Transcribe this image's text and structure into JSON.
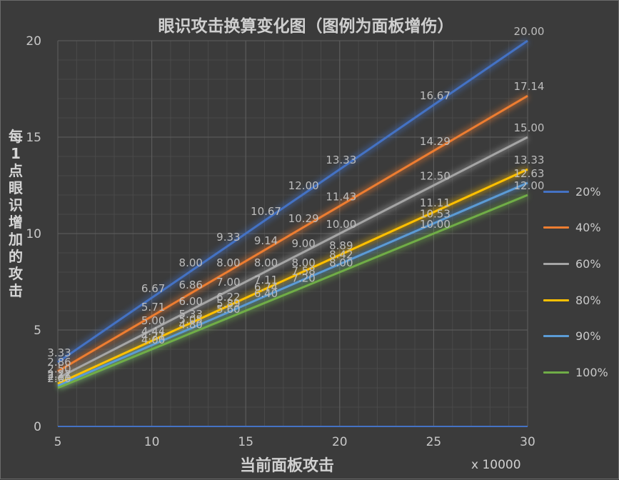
{
  "chart_data": {
    "type": "line",
    "title": "眼识攻击换算变化图（图例为面板增伤）",
    "xlabel": "当前面板攻击",
    "ylabel": "每1点眼识增加的攻击",
    "x_unit_label": "x 10000",
    "xlim": [
      5,
      30
    ],
    "ylim": [
      0,
      20
    ],
    "x_ticks": [
      "5",
      "10",
      "15",
      "20",
      "25",
      "30"
    ],
    "y_ticks": [
      "0",
      "5",
      "10",
      "15",
      "20"
    ],
    "grid": true,
    "legend_position": "right",
    "series": [
      {
        "name": "20%",
        "color": "#4472c4",
        "points": [
          [
            5,
            3.33
          ],
          [
            10,
            6.67
          ],
          [
            12,
            8.0
          ],
          [
            14,
            9.33
          ],
          [
            16,
            10.67
          ],
          [
            18,
            12.0
          ],
          [
            20,
            13.33
          ],
          [
            25,
            16.67
          ],
          [
            30,
            20.0
          ]
        ],
        "labels": [
          [
            5,
            3.33,
            "3.33"
          ],
          [
            10,
            6.67,
            "6.67"
          ],
          [
            12,
            8.0,
            "8.00"
          ],
          [
            14,
            9.33,
            "9.33"
          ],
          [
            16,
            10.67,
            "10.67"
          ],
          [
            18,
            12.0,
            "12.00"
          ],
          [
            20,
            13.33,
            "13.33"
          ],
          [
            25,
            16.67,
            "16.67"
          ],
          [
            30,
            20.0,
            "20.00"
          ]
        ]
      },
      {
        "name": "40%",
        "color": "#ed7d31",
        "points": [
          [
            5,
            2.86
          ],
          [
            10,
            5.71
          ],
          [
            12,
            6.86
          ],
          [
            14,
            8.0
          ],
          [
            16,
            9.14
          ],
          [
            18,
            10.29
          ],
          [
            20,
            11.43
          ],
          [
            25,
            14.29
          ],
          [
            30,
            17.14
          ]
        ],
        "labels": [
          [
            5,
            2.86,
            "2.86"
          ],
          [
            10,
            5.71,
            "5.71"
          ],
          [
            12,
            6.86,
            "6.86"
          ],
          [
            14,
            8.0,
            "8.00"
          ],
          [
            16,
            9.14,
            "9.14"
          ],
          [
            18,
            10.29,
            "10.29"
          ],
          [
            20,
            11.43,
            "11.43"
          ],
          [
            25,
            14.29,
            "14.29"
          ],
          [
            30,
            17.14,
            "17.14"
          ]
        ]
      },
      {
        "name": "60%",
        "color": "#a5a5a5",
        "points": [
          [
            5,
            2.5
          ],
          [
            10,
            5.0
          ],
          [
            12,
            6.0
          ],
          [
            14,
            7.0
          ],
          [
            16,
            8.0
          ],
          [
            18,
            9.0
          ],
          [
            20,
            10.0
          ],
          [
            25,
            12.5
          ],
          [
            30,
            15.0
          ]
        ],
        "labels": [
          [
            5,
            2.5,
            "2.50"
          ],
          [
            10,
            5.0,
            "5.00"
          ],
          [
            12,
            6.0,
            "6.00"
          ],
          [
            14,
            7.0,
            "7.00"
          ],
          [
            16,
            8.0,
            "8.00"
          ],
          [
            18,
            9.0,
            "9.00"
          ],
          [
            20,
            10.0,
            "10.00"
          ],
          [
            25,
            12.5,
            "12.50"
          ],
          [
            30,
            15.0,
            "15.00"
          ]
        ]
      },
      {
        "name": "80%",
        "color": "#ffc000",
        "points": [
          [
            5,
            2.22
          ],
          [
            10,
            4.44
          ],
          [
            12,
            5.33
          ],
          [
            14,
            6.22
          ],
          [
            16,
            7.11
          ],
          [
            18,
            8.0
          ],
          [
            20,
            8.89
          ],
          [
            25,
            11.11
          ],
          [
            30,
            13.33
          ]
        ],
        "labels": [
          [
            5,
            2.22,
            "2.22"
          ],
          [
            10,
            4.44,
            "4.44"
          ],
          [
            12,
            5.33,
            "5.33"
          ],
          [
            14,
            6.22,
            "6.22"
          ],
          [
            16,
            7.11,
            "7.11"
          ],
          [
            18,
            8.0,
            "8.00"
          ],
          [
            20,
            8.89,
            "8.89"
          ],
          [
            25,
            11.11,
            "11.11"
          ],
          [
            30,
            13.33,
            "13.33"
          ]
        ]
      },
      {
        "name": "90%",
        "color": "#5b9bd5",
        "points": [
          [
            5,
            2.11
          ],
          [
            10,
            4.21
          ],
          [
            12,
            5.05
          ],
          [
            14,
            5.89
          ],
          [
            16,
            6.74
          ],
          [
            18,
            7.58
          ],
          [
            20,
            8.42
          ],
          [
            25,
            10.53
          ],
          [
            30,
            12.63
          ]
        ],
        "labels": [
          [
            5,
            2.11,
            "2.11"
          ],
          [
            10,
            4.21,
            "4.21"
          ],
          [
            12,
            5.05,
            "5.05"
          ],
          [
            14,
            5.89,
            "5.89"
          ],
          [
            16,
            6.74,
            "6.74"
          ],
          [
            18,
            7.58,
            "7.58"
          ],
          [
            20,
            8.42,
            "8.42"
          ],
          [
            25,
            10.53,
            "10.53"
          ],
          [
            30,
            12.63,
            "12.63"
          ]
        ]
      },
      {
        "name": "100%",
        "color": "#70ad47",
        "points": [
          [
            5,
            2.0
          ],
          [
            10,
            4.0
          ],
          [
            12,
            4.8
          ],
          [
            14,
            5.6
          ],
          [
            16,
            6.4
          ],
          [
            18,
            7.2
          ],
          [
            20,
            8.0
          ],
          [
            25,
            10.0
          ],
          [
            30,
            12.0
          ]
        ],
        "labels": [
          [
            5,
            2.0,
            "2.00"
          ],
          [
            10,
            4.0,
            "4.00"
          ],
          [
            12,
            4.8,
            "4.80"
          ],
          [
            14,
            5.6,
            "5.60"
          ],
          [
            16,
            6.4,
            "6.40"
          ],
          [
            18,
            7.2,
            "7.20"
          ],
          [
            20,
            8.0,
            "8.00"
          ],
          [
            25,
            10.0,
            "10.00"
          ],
          [
            30,
            12.0,
            "12.00"
          ]
        ]
      }
    ]
  }
}
